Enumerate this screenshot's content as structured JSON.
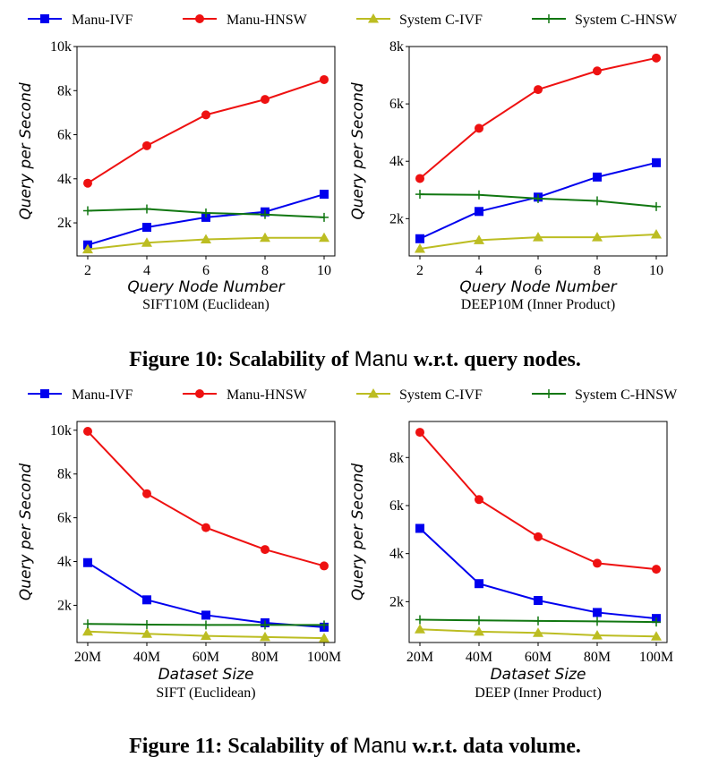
{
  "figure10": {
    "caption_prefix": "Figure 10: Scalability of",
    "caption_system": "Manu",
    "caption_suffix": "w.r.t. query nodes."
  },
  "figure11": {
    "caption_prefix": "Figure 11: Scalability of",
    "caption_system": "Manu",
    "caption_suffix": "w.r.t. data volume."
  },
  "colors": {
    "Manu-IVF": "#0000ee",
    "Manu-HNSW": "#ee1111",
    "System C-IVF": "#bcbd22",
    "System C-HNSW": "#117711"
  },
  "chart_data": [
    {
      "type": "line",
      "panel": "fig10-left",
      "title": "SIFT10M (Euclidean)",
      "xlabel": "Query Node Number",
      "ylabel": "Query per Second",
      "x": [
        2,
        4,
        6,
        8,
        10
      ],
      "xticks": [
        "2",
        "4",
        "6",
        "8",
        "10"
      ],
      "ylim": [
        500,
        10000
      ],
      "yticks": [
        2000,
        4000,
        6000,
        8000,
        10000
      ],
      "ytick_labels": [
        "2k",
        "4k",
        "6k",
        "8k",
        "10k"
      ],
      "legend": [
        "Manu-IVF",
        "Manu-HNSW",
        "System C-IVF",
        "System C-HNSW"
      ],
      "series": [
        {
          "name": "Manu-IVF",
          "values": [
            1000,
            1800,
            2250,
            2500,
            3300
          ]
        },
        {
          "name": "Manu-HNSW",
          "values": [
            3800,
            5500,
            6900,
            7600,
            8500
          ]
        },
        {
          "name": "System C-IVF",
          "values": [
            800,
            1100,
            1250,
            1320,
            1320
          ]
        },
        {
          "name": "System C-HNSW",
          "values": [
            2550,
            2630,
            2450,
            2380,
            2250
          ]
        }
      ]
    },
    {
      "type": "line",
      "panel": "fig10-right",
      "title": "DEEP10M (Inner Product)",
      "xlabel": "Query Node Number",
      "ylabel": "Query per Second",
      "x": [
        2,
        4,
        6,
        8,
        10
      ],
      "xticks": [
        "2",
        "4",
        "6",
        "8",
        "10"
      ],
      "ylim": [
        700,
        8000
      ],
      "yticks": [
        2000,
        4000,
        6000,
        8000
      ],
      "ytick_labels": [
        "2k",
        "4k",
        "6k",
        "8k"
      ],
      "legend": [
        "Manu-IVF",
        "Manu-HNSW",
        "System C-IVF",
        "System C-HNSW"
      ],
      "series": [
        {
          "name": "Manu-IVF",
          "values": [
            1300,
            2250,
            2750,
            3450,
            3950
          ]
        },
        {
          "name": "Manu-HNSW",
          "values": [
            3400,
            5150,
            6500,
            7150,
            7600
          ]
        },
        {
          "name": "System C-IVF",
          "values": [
            950,
            1250,
            1350,
            1350,
            1450
          ]
        },
        {
          "name": "System C-HNSW",
          "values": [
            2850,
            2830,
            2700,
            2620,
            2420
          ]
        }
      ]
    },
    {
      "type": "line",
      "panel": "fig11-left",
      "title": "SIFT (Euclidean)",
      "xlabel": "Dataset Size",
      "ylabel": "Query per Second",
      "x": [
        20,
        40,
        60,
        80,
        100
      ],
      "xticks": [
        "20M",
        "40M",
        "60M",
        "80M",
        "100M"
      ],
      "ylim": [
        300,
        10400
      ],
      "yticks": [
        2000,
        4000,
        6000,
        8000,
        10000
      ],
      "ytick_labels": [
        "2k",
        "4k",
        "6k",
        "8k",
        "10k"
      ],
      "legend": [
        "Manu-IVF",
        "Manu-HNSW",
        "System C-IVF",
        "System C-HNSW"
      ],
      "series": [
        {
          "name": "Manu-IVF",
          "values": [
            3950,
            2250,
            1550,
            1200,
            1000
          ]
        },
        {
          "name": "Manu-HNSW",
          "values": [
            9950,
            7100,
            5550,
            4550,
            3800
          ]
        },
        {
          "name": "System C-IVF",
          "values": [
            800,
            700,
            600,
            550,
            500
          ]
        },
        {
          "name": "System C-HNSW",
          "values": [
            1150,
            1120,
            1100,
            1100,
            1100
          ]
        }
      ]
    },
    {
      "type": "line",
      "panel": "fig11-right",
      "title": "DEEP (Inner Product)",
      "xlabel": "Dataset Size",
      "ylabel": "Query per Second",
      "x": [
        20,
        40,
        60,
        80,
        100
      ],
      "xticks": [
        "20M",
        "40M",
        "60M",
        "80M",
        "100M"
      ],
      "ylim": [
        300,
        9500
      ],
      "yticks": [
        2000,
        4000,
        6000,
        8000
      ],
      "ytick_labels": [
        "2k",
        "4k",
        "6k",
        "8k"
      ],
      "legend": [
        "Manu-IVF",
        "Manu-HNSW",
        "System C-IVF",
        "System C-HNSW"
      ],
      "series": [
        {
          "name": "Manu-IVF",
          "values": [
            5050,
            2750,
            2050,
            1550,
            1300
          ]
        },
        {
          "name": "Manu-HNSW",
          "values": [
            9050,
            6250,
            4700,
            3600,
            3350
          ]
        },
        {
          "name": "System C-IVF",
          "values": [
            850,
            750,
            700,
            600,
            550
          ]
        },
        {
          "name": "System C-HNSW",
          "values": [
            1250,
            1220,
            1200,
            1180,
            1150
          ]
        }
      ]
    }
  ]
}
